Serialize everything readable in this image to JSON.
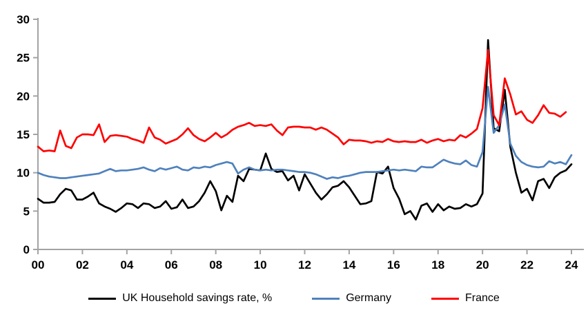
{
  "chart_data": {
    "type": "line",
    "title": "",
    "frequency": "quarterly",
    "x_start_year": 2000,
    "x_axis": {
      "tick_labels": [
        "00",
        "02",
        "04",
        "06",
        "08",
        "10",
        "12",
        "14",
        "16",
        "18",
        "20",
        "22",
        "24"
      ],
      "quarters_per_tick": 8
    },
    "y_axis": {
      "min": 0,
      "max": 30,
      "step": 5,
      "tick_labels": [
        "0",
        "5",
        "10",
        "15",
        "20",
        "25",
        "30"
      ]
    },
    "grid": "off",
    "legend_position": "bottom",
    "colors": {
      "axis": "#a3a3a3",
      "tick_text": "#000000"
    },
    "series": [
      {
        "name": "UK Household savings rate, %",
        "color": "#000000",
        "values": [
          6.6,
          6.1,
          6.1,
          6.2,
          7.2,
          7.9,
          7.7,
          6.5,
          6.5,
          6.9,
          7.4,
          6.0,
          5.6,
          5.3,
          4.9,
          5.4,
          6.0,
          5.9,
          5.4,
          6.0,
          5.9,
          5.4,
          5.6,
          6.3,
          5.3,
          5.5,
          6.5,
          5.4,
          5.6,
          6.3,
          7.4,
          8.9,
          7.6,
          5.1,
          7.0,
          6.2,
          9.6,
          8.9,
          10.5,
          10.4,
          10.3,
          12.5,
          10.5,
          10.1,
          10.2,
          9.0,
          9.6,
          7.7,
          9.8,
          8.6,
          7.4,
          6.5,
          7.2,
          8.1,
          8.3,
          8.9,
          8.1,
          7.0,
          5.9,
          6.0,
          6.3,
          10.1,
          9.9,
          10.8,
          8.0,
          6.6,
          4.6,
          5.0,
          3.9,
          5.7,
          6.0,
          4.9,
          5.9,
          5.1,
          5.6,
          5.3,
          5.4,
          5.9,
          5.6,
          5.9,
          7.3,
          27.3,
          15.8,
          15.4,
          20.8,
          13.4,
          10.0,
          7.4,
          7.9,
          6.4,
          8.9,
          9.2,
          8.0,
          9.4,
          10.0,
          10.3,
          11.1
        ]
      },
      {
        "name": "Germany",
        "color": "#4f81bd",
        "values": [
          10.0,
          9.7,
          9.5,
          9.4,
          9.3,
          9.3,
          9.4,
          9.5,
          9.6,
          9.7,
          9.8,
          9.9,
          10.2,
          10.5,
          10.2,
          10.3,
          10.3,
          10.4,
          10.5,
          10.7,
          10.4,
          10.2,
          10.6,
          10.4,
          10.6,
          10.8,
          10.4,
          10.3,
          10.7,
          10.6,
          10.8,
          10.7,
          11.0,
          11.2,
          11.4,
          11.2,
          9.9,
          10.4,
          10.7,
          10.4,
          10.3,
          10.4,
          10.3,
          10.4,
          10.4,
          10.3,
          10.2,
          10.1,
          10.1,
          10.0,
          9.8,
          9.5,
          9.2,
          9.4,
          9.3,
          9.5,
          9.6,
          9.8,
          10.0,
          10.1,
          10.1,
          10.1,
          10.2,
          10.3,
          10.4,
          10.3,
          10.4,
          10.3,
          10.2,
          10.8,
          10.7,
          10.7,
          11.2,
          11.7,
          11.4,
          11.2,
          11.1,
          11.6,
          11.0,
          10.8,
          12.7,
          21.2,
          15.2,
          16.2,
          18.9,
          13.8,
          12.2,
          11.4,
          11.0,
          10.8,
          10.7,
          10.8,
          11.5,
          11.2,
          11.4,
          11.1,
          12.3
        ]
      },
      {
        "name": "France",
        "color": "#ff0000",
        "values": [
          13.4,
          12.8,
          12.9,
          12.8,
          15.5,
          13.5,
          13.2,
          14.6,
          15.0,
          15.0,
          14.9,
          16.3,
          14.0,
          14.8,
          14.9,
          14.8,
          14.7,
          14.4,
          14.2,
          13.9,
          15.9,
          14.6,
          14.3,
          13.8,
          14.1,
          14.4,
          15.0,
          15.8,
          14.9,
          14.4,
          14.1,
          14.6,
          15.2,
          14.6,
          15.0,
          15.6,
          16.0,
          16.2,
          16.5,
          16.1,
          16.2,
          16.1,
          16.3,
          15.5,
          14.9,
          15.9,
          16.0,
          16.0,
          15.9,
          15.9,
          15.6,
          15.9,
          15.6,
          15.1,
          14.6,
          13.7,
          14.3,
          14.2,
          14.2,
          14.1,
          13.9,
          14.1,
          14.0,
          14.4,
          14.1,
          14.0,
          14.1,
          14.0,
          14.0,
          14.3,
          13.9,
          14.2,
          14.4,
          14.1,
          14.3,
          14.2,
          14.9,
          14.6,
          15.1,
          15.7,
          18.4,
          26.0,
          17.5,
          16.2,
          22.3,
          20.2,
          17.6,
          18.0,
          16.9,
          16.5,
          17.5,
          18.8,
          17.8,
          17.7,
          17.3,
          17.9
        ]
      }
    ]
  }
}
